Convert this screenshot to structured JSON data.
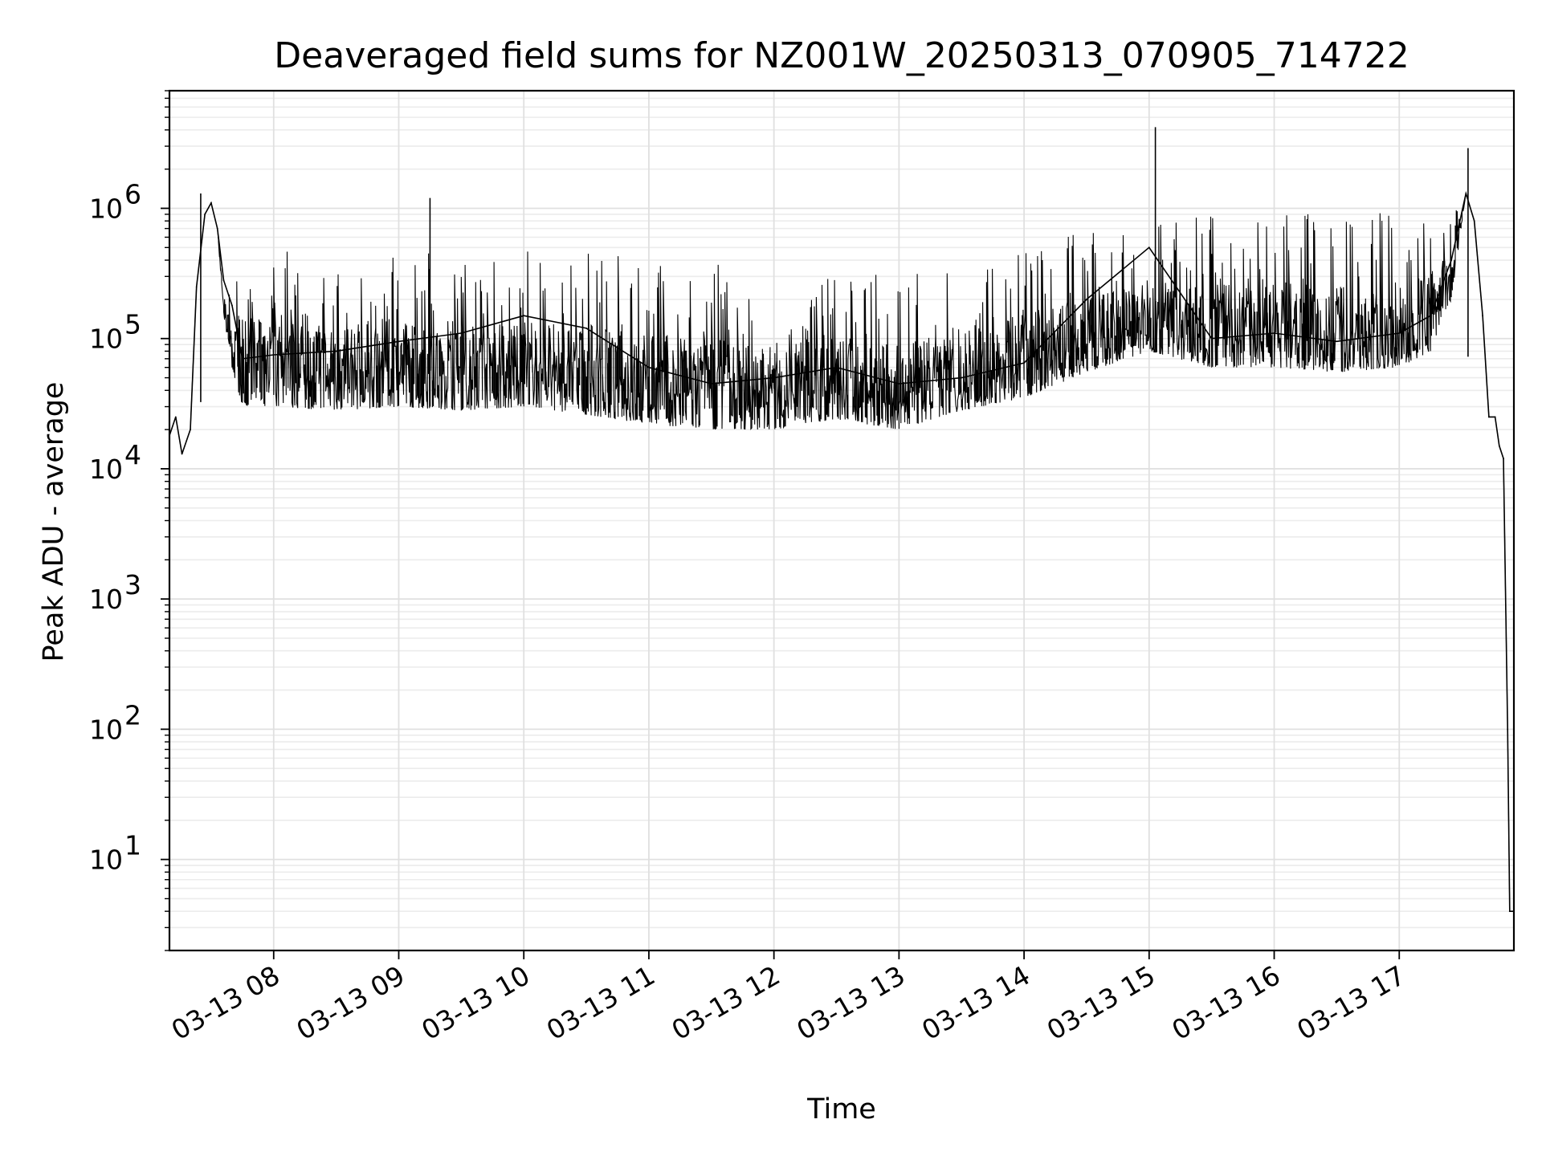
{
  "chart_data": {
    "type": "line",
    "title": "Deaveraged field sums for NZ001W_20250313_070905_714722",
    "xlabel": "Time",
    "ylabel": "Peak ADU - average",
    "yscale": "log",
    "ylim": [
      2,
      8000000
    ],
    "xlim": [
      "2025-03-13T07:10:00",
      "2025-03-13T17:55:00"
    ],
    "grid": true,
    "x_ticks": [
      "03-13 08",
      "03-13 09",
      "03-13 10",
      "03-13 11",
      "03-13 12",
      "03-13 13",
      "03-13 14",
      "03-13 15",
      "03-13 16",
      "03-13 17"
    ],
    "x_tick_times": [
      "2025-03-13T08:00:00",
      "2025-03-13T09:00:00",
      "2025-03-13T10:00:00",
      "2025-03-13T11:00:00",
      "2025-03-13T12:00:00",
      "2025-03-13T13:00:00",
      "2025-03-13T14:00:00",
      "2025-03-13T15:00:00",
      "2025-03-13T16:00:00",
      "2025-03-13T17:00:00"
    ],
    "y_ticks": [
      10,
      100,
      1000,
      10000,
      100000,
      1000000
    ],
    "y_tick_labels": [
      {
        "base": "10",
        "exp": "1"
      },
      {
        "base": "10",
        "exp": "2"
      },
      {
        "base": "10",
        "exp": "3"
      },
      {
        "base": "10",
        "exp": "4"
      },
      {
        "base": "10",
        "exp": "5"
      },
      {
        "base": "10",
        "exp": "6"
      }
    ],
    "series": [
      {
        "line_color": "#000000",
        "x": [
          "2025-03-13T07:10:00",
          "2025-03-13T07:13:00",
          "2025-03-13T07:16:00",
          "2025-03-13T07:20:00",
          "2025-03-13T07:23:00",
          "2025-03-13T07:27:00",
          "2025-03-13T07:30:00",
          "2025-03-13T07:33:00",
          "2025-03-13T07:36:00",
          "2025-03-13T07:40:00",
          "2025-03-13T07:45:00",
          "2025-03-13T08:00:00",
          "2025-03-13T08:30:00",
          "2025-03-13T09:00:00",
          "2025-03-13T09:30:00",
          "2025-03-13T10:00:00",
          "2025-03-13T10:30:00",
          "2025-03-13T11:00:00",
          "2025-03-13T11:30:00",
          "2025-03-13T12:00:00",
          "2025-03-13T12:30:00",
          "2025-03-13T13:00:00",
          "2025-03-13T13:30:00",
          "2025-03-13T14:00:00",
          "2025-03-13T14:30:00",
          "2025-03-13T15:00:00",
          "2025-03-13T15:30:00",
          "2025-03-13T16:00:00",
          "2025-03-13T16:30:00",
          "2025-03-13T17:00:00",
          "2025-03-13T17:15:00",
          "2025-03-13T17:25:00",
          "2025-03-13T17:32:00",
          "2025-03-13T17:36:00",
          "2025-03-13T17:40:00",
          "2025-03-13T17:43:00",
          "2025-03-13T17:46:00",
          "2025-03-13T17:48:00",
          "2025-03-13T17:50:00",
          "2025-03-13T17:52:00",
          "2025-03-13T17:53:00",
          "2025-03-13T17:55:00"
        ],
        "y": [
          18000,
          25000,
          13000,
          20000,
          250000,
          900000,
          1100000,
          700000,
          280000,
          180000,
          70000,
          75000,
          80000,
          95000,
          110000,
          150000,
          120000,
          60000,
          45000,
          50000,
          60000,
          45000,
          50000,
          65000,
          200000,
          500000,
          100000,
          110000,
          95000,
          110000,
          150000,
          400000,
          1300000,
          800000,
          150000,
          25000,
          25000,
          15000,
          12000,
          100,
          4,
          4
        ],
        "envelope_min": [
          18000,
          25000,
          13000,
          20000,
          250000,
          900000,
          1100000,
          700000,
          150000,
          60000,
          30000,
          30000,
          28000,
          30000,
          28000,
          30000,
          26000,
          22000,
          20000,
          20000,
          24000,
          20000,
          28000,
          35000,
          55000,
          80000,
          60000,
          60000,
          55000,
          60000,
          80000,
          200000,
          1300000,
          800000,
          150000,
          25000,
          25000,
          15000,
          12000,
          100,
          4,
          4
        ],
        "envelope_max": [
          18000,
          25000,
          13000,
          20000,
          250000,
          900000,
          1100000,
          700000,
          280000,
          250000,
          500000,
          520000,
          500000,
          520000,
          450000,
          480000,
          470000,
          420000,
          380000,
          300000,
          350000,
          300000,
          400000,
          550000,
          650000,
          800000,
          900000,
          950000,
          900000,
          950000,
          1000000,
          900000,
          1300000,
          800000,
          150000,
          25000,
          25000,
          15000,
          12000,
          100,
          4,
          4
        ],
        "peaks": [
          {
            "x": "2025-03-13T07:25:00",
            "y": 1300000
          },
          {
            "x": "2025-03-13T09:15:00",
            "y": 1200000
          },
          {
            "x": "2025-03-13T15:03:00",
            "y": 4200000
          },
          {
            "x": "2025-03-13T17:33:00",
            "y": 2900000
          }
        ]
      }
    ]
  }
}
